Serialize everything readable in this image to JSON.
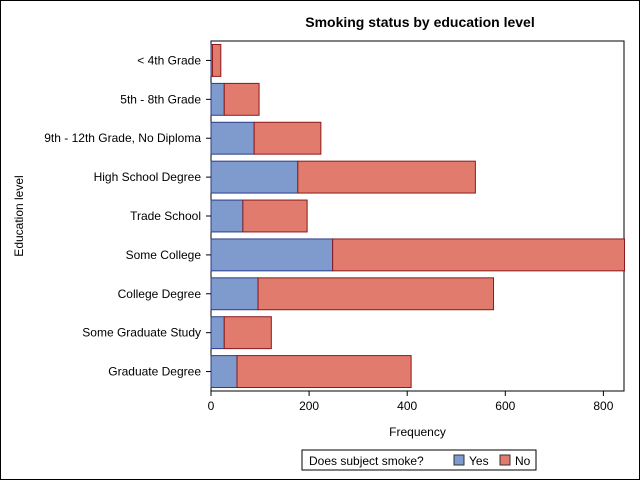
{
  "chart_data": {
    "type": "bar",
    "orientation": "horizontal",
    "stacked": true,
    "title": "Smoking status by education level",
    "xlabel": "Frequency",
    "ylabel": "Education level",
    "categories": [
      "< 4th Grade",
      "5th - 8th Grade",
      "9th - 12th Grade, No Diploma",
      "High School Degree",
      "Trade School",
      "Some College",
      "College Degree",
      "Some Graduate Study",
      "Graduate Degree"
    ],
    "series": [
      {
        "name": "Yes",
        "color": "#7f9acc",
        "values": [
          3,
          27,
          88,
          177,
          65,
          248,
          96,
          27,
          53
        ]
      },
      {
        "name": "No",
        "color": "#e07b6d",
        "values": [
          17,
          71,
          136,
          362,
          131,
          595,
          480,
          96,
          355
        ]
      }
    ],
    "xlim": [
      0,
      842
    ],
    "xticks": [
      0,
      200,
      400,
      600,
      800
    ],
    "grid": false,
    "legend": {
      "title": "Does subject smoke?",
      "position": "bottom"
    }
  }
}
